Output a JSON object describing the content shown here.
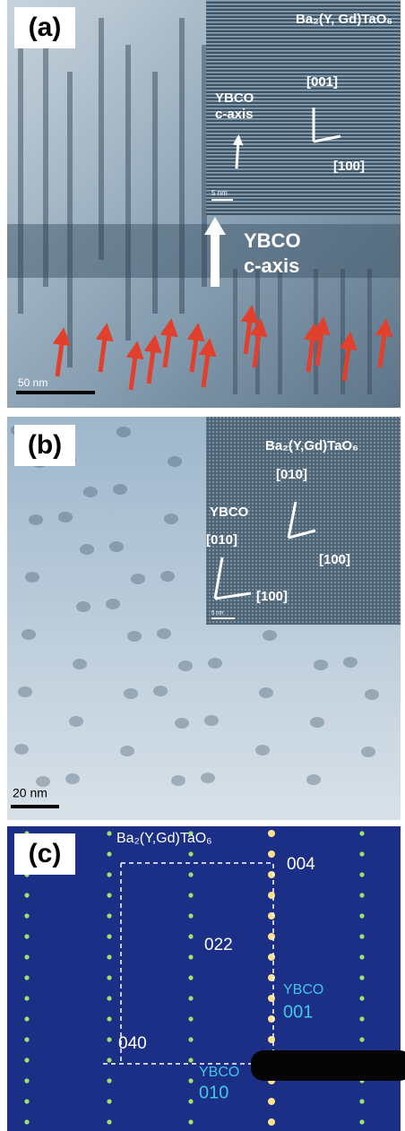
{
  "panels": [
    {
      "label": "(a)",
      "inset": {
        "compound": "Ba₂(Y, Gd)TaO₆",
        "direction_1": "[001]",
        "direction_2": "[100]",
        "axis_label": [
          "YBCO",
          "c-axis"
        ],
        "scale_bar": "5 nm"
      },
      "axis_label": [
        "YBCO",
        "c-axis"
      ],
      "scale_bar": "50 nm"
    },
    {
      "label": "(b)",
      "inset": {
        "compound": "Ba₂(Y,Gd)TaO₆",
        "compound_direction_1": "[010]",
        "compound_direction_2": "[100]",
        "matrix": "YBCO",
        "matrix_direction_1": "[010]",
        "matrix_direction_2": "[100]",
        "scale_bar": "5 nm"
      },
      "scale_bar": "20 nm"
    },
    {
      "label": "(c)",
      "compound": "Ba₂(Y,Gd)TaO₆",
      "spots": [
        "004",
        "022",
        "040"
      ],
      "ybco_1": [
        "YBCO",
        "001"
      ],
      "ybco_2": [
        "YBCO",
        "010"
      ]
    }
  ]
}
